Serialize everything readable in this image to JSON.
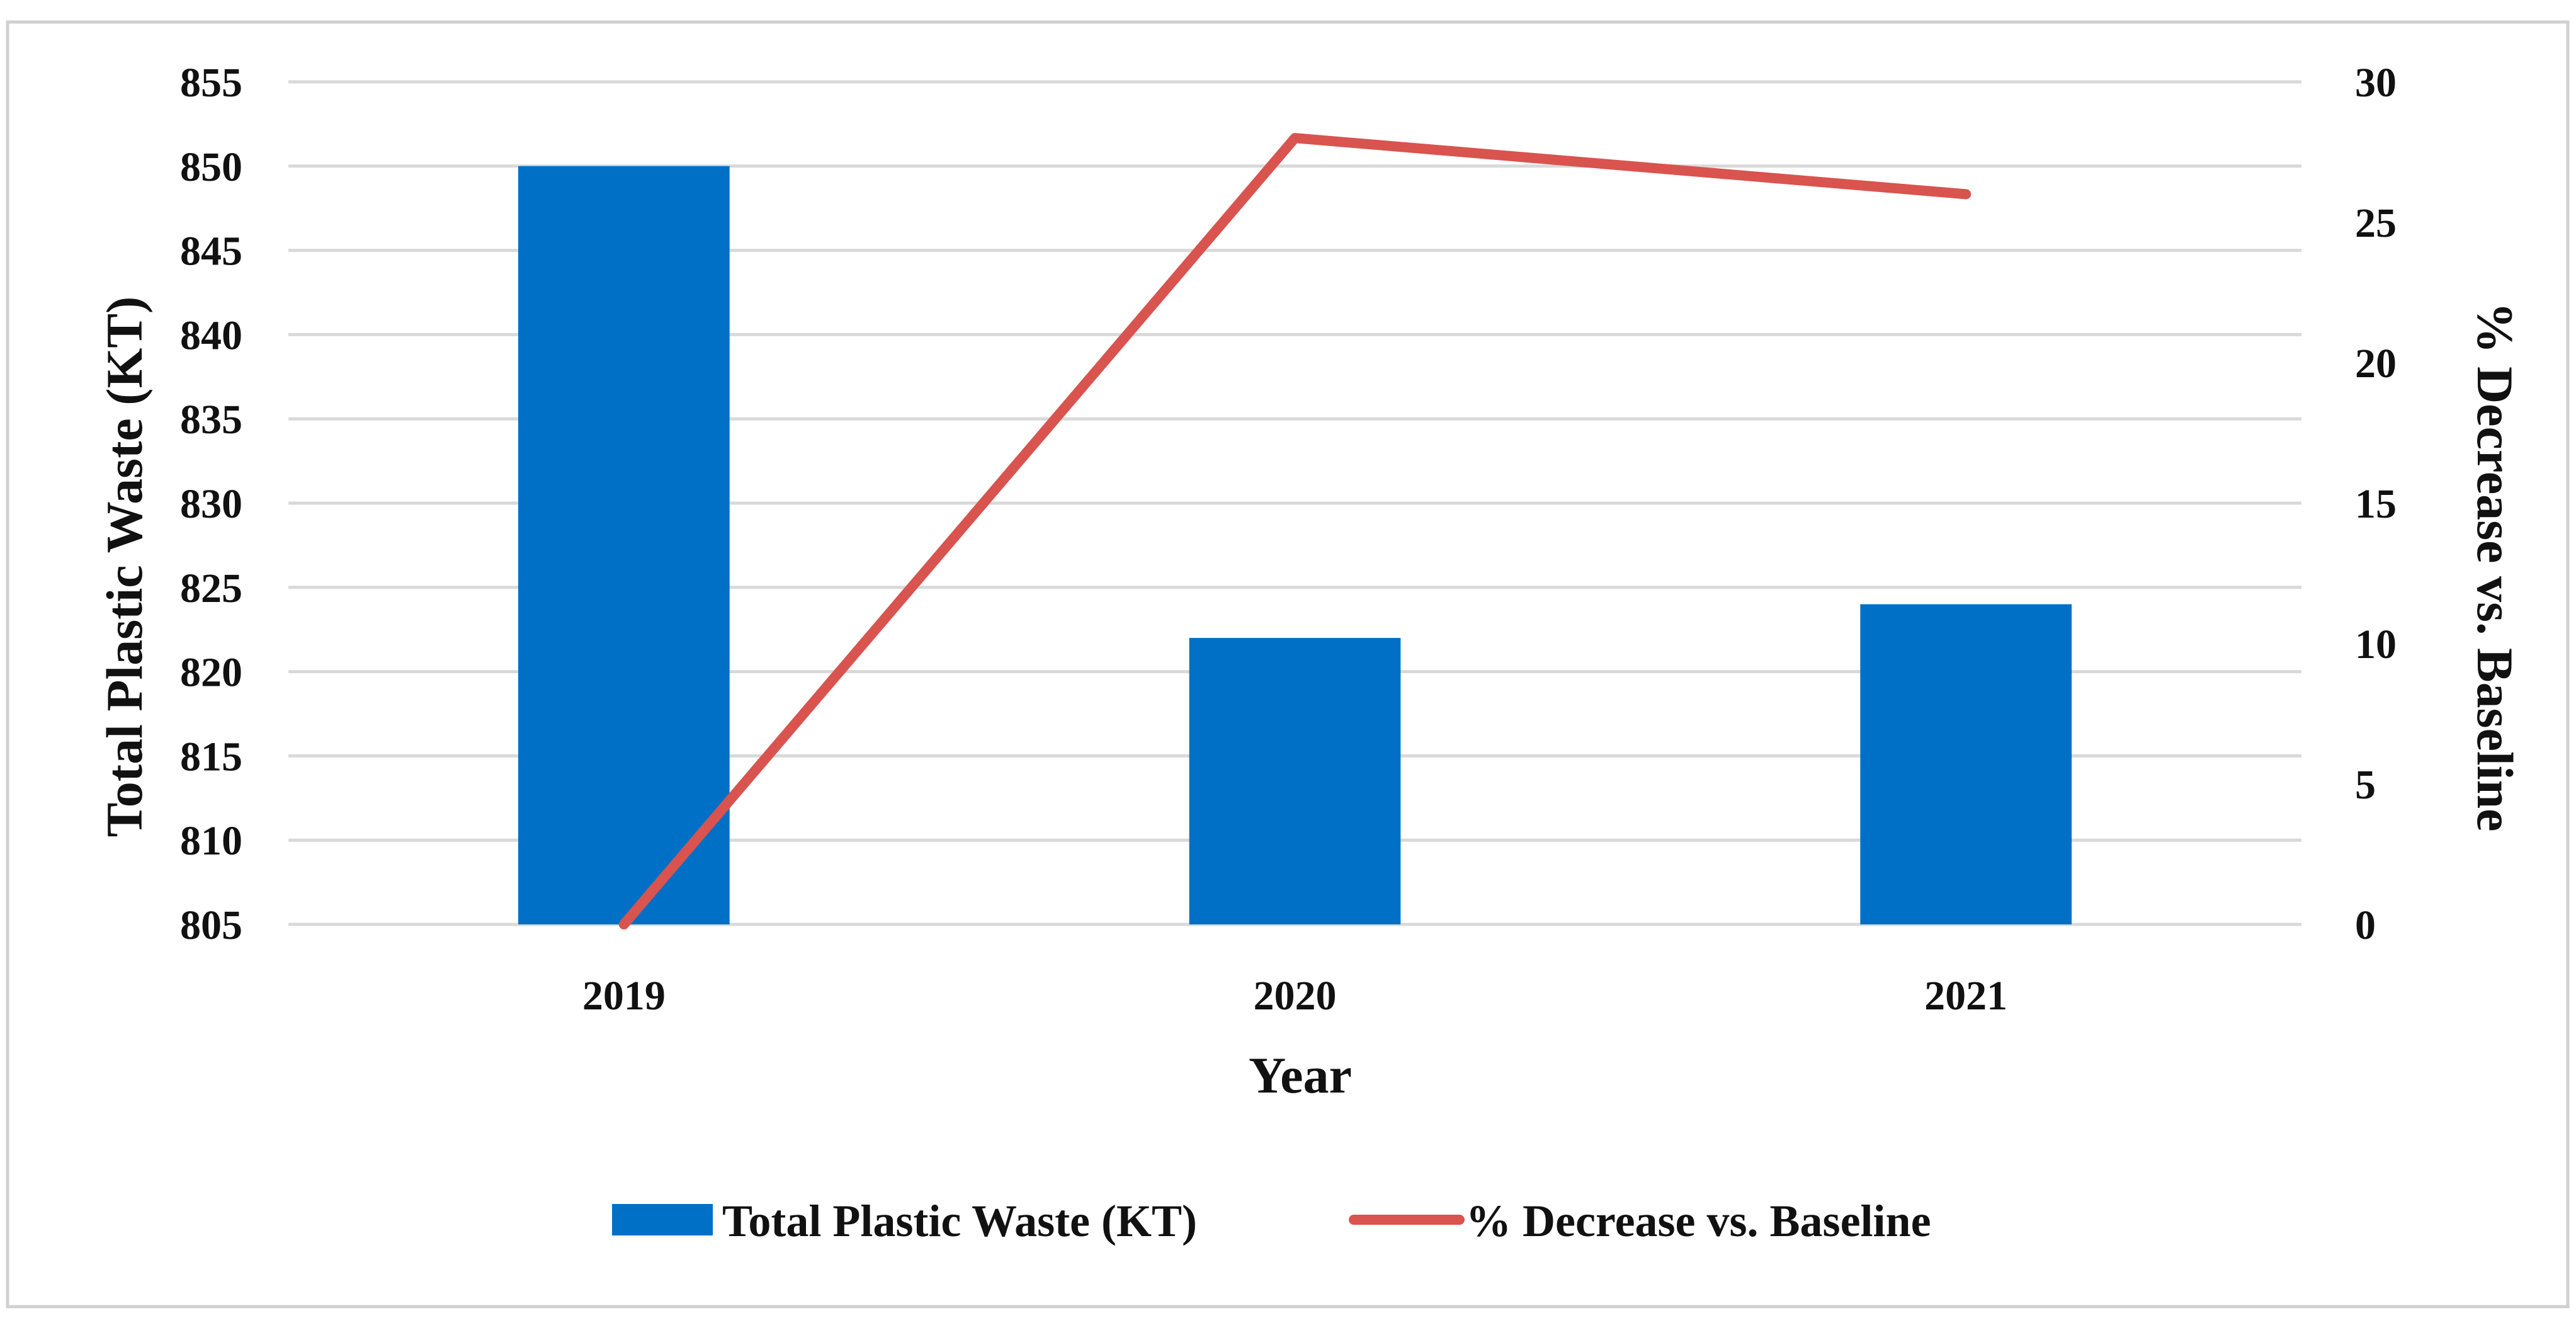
{
  "chart_data": {
    "type": "bar+line",
    "categories": [
      "2019",
      "2020",
      "2021"
    ],
    "series": [
      {
        "name": "Total Plastic Waste (KT)",
        "type": "bar",
        "axis": "left",
        "values": [
          850,
          822,
          824
        ]
      },
      {
        "name": "% Decrease vs. Baseline",
        "type": "line",
        "axis": "right",
        "values": [
          0,
          28,
          26
        ]
      }
    ],
    "xlabel": "Year",
    "ylabel_left": "Total Plastic Waste (KT)",
    "ylabel_right": "% Decrease vs. Baseline",
    "ylim_left": [
      805,
      855
    ],
    "yticks_left": [
      805,
      810,
      815,
      820,
      825,
      830,
      835,
      840,
      845,
      850,
      855
    ],
    "ylim_right": [
      0,
      30
    ],
    "yticks_right": [
      0,
      5,
      10,
      15,
      20,
      25,
      30
    ],
    "grid": true,
    "legend_position": "bottom",
    "colors": {
      "bar": "#0070C6",
      "line": "#D9534F",
      "grid": "#D9D9D9",
      "frame": "#D0D0D0"
    }
  }
}
